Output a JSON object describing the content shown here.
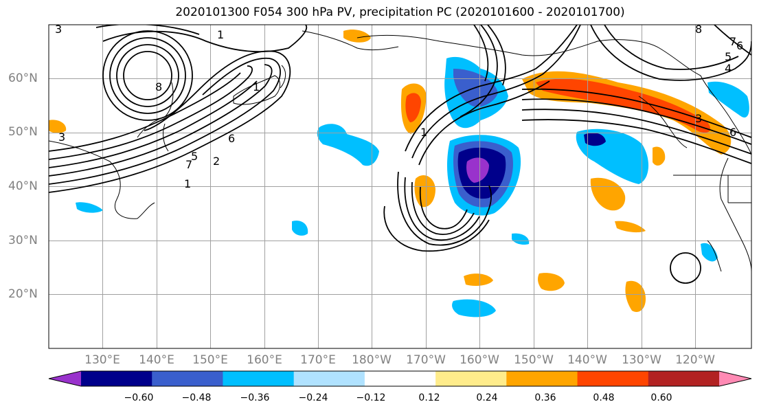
{
  "title": "2020101300 F054 300 hPa PV, precipitation PC (2020101600 - 2020101700)",
  "lat_labels": [
    "60°N",
    "50°N",
    "40°N",
    "30°N",
    "20°N"
  ],
  "lon_labels": [
    "130°E",
    "140°E",
    "150°E",
    "160°E",
    "170°E",
    "180°W",
    "170°W",
    "160°W",
    "150°W",
    "140°W",
    "130°W",
    "120°W"
  ],
  "colorbar": {
    "tick_labels": [
      "−0.60",
      "−0.48",
      "−0.36",
      "−0.24",
      "−0.12",
      "0.12",
      "0.24",
      "0.36",
      "0.48",
      "0.60"
    ],
    "colors": [
      "#9932cc",
      "#00008b",
      "#3a5fcd",
      "#00bfff",
      "#b0e2ff",
      "#ffffff",
      "#ffec8b",
      "#ffa500",
      "#ff4500",
      "#b22222",
      "#ff8ab4"
    ]
  },
  "contour_labels": [
    "1",
    "3",
    "8",
    "7",
    "6",
    "5",
    "2",
    "1",
    "3",
    "1",
    "7",
    "8",
    "6",
    "5",
    "4",
    "3",
    "6",
    "1"
  ],
  "colors": {
    "pv_contour": "#000000",
    "grid": "#a0a0a0",
    "coast": "#000000"
  }
}
